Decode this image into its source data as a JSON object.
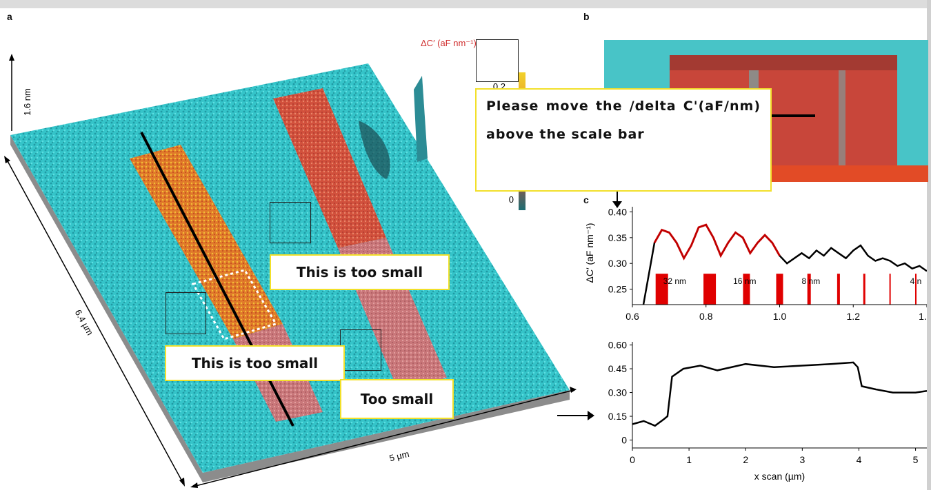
{
  "panels": {
    "a": "a",
    "b": "b",
    "c": "c"
  },
  "panel_a": {
    "colorbar_label": "ΔC′ (aF nm⁻¹)",
    "colorbar_ticks": [
      "0.2",
      "0"
    ],
    "height_label": "1.6 nm",
    "width_label": "6.4 µm",
    "depth_label": "5 µm",
    "colors": {
      "substrate": "#35c4c9",
      "stripe_orange": "#e0702a",
      "stripe_red": "#d14a3a",
      "stripe_pink": "#c9777a"
    }
  },
  "annotations": {
    "main_note": "Please move the /delta C'(aF/nm) above the scale bar",
    "small_note_1": "This is too small",
    "small_note_2": "This is too small",
    "small_note_3": "Too small"
  },
  "chart_data": [
    {
      "type": "line",
      "panel": "c-top",
      "xlabel": "",
      "ylabel": "ΔC′ (aF nm⁻¹)",
      "xlim": [
        0.6,
        1.4
      ],
      "ylim": [
        0.22,
        0.41
      ],
      "x_ticks": [
        "0.6",
        "0.8",
        "1.0",
        "1.2",
        "1."
      ],
      "y_ticks": [
        "0.40",
        "0.35",
        "0.30",
        "0.25"
      ],
      "bar_labels": [
        "32 nm",
        "16 nm",
        "8 nm",
        "4 n"
      ],
      "series": [
        {
          "x": [
            0.63,
            0.65,
            0.66,
            0.68,
            0.7,
            0.72,
            0.74,
            0.76,
            0.78,
            0.8,
            0.82,
            0.84,
            0.86,
            0.88,
            0.9,
            0.92,
            0.94,
            0.96,
            0.98,
            1.0,
            1.02,
            1.04,
            1.06,
            1.08,
            1.1,
            1.12,
            1.14,
            1.16,
            1.18,
            1.2,
            1.22,
            1.24,
            1.26,
            1.28,
            1.3,
            1.32,
            1.34,
            1.36,
            1.38,
            1.4
          ],
          "y": [
            0.22,
            0.3,
            0.34,
            0.365,
            0.36,
            0.34,
            0.31,
            0.335,
            0.37,
            0.375,
            0.35,
            0.315,
            0.34,
            0.36,
            0.35,
            0.32,
            0.34,
            0.355,
            0.34,
            0.315,
            0.3,
            0.31,
            0.32,
            0.31,
            0.325,
            0.315,
            0.33,
            0.32,
            0.31,
            0.325,
            0.335,
            0.315,
            0.305,
            0.31,
            0.305,
            0.295,
            0.3,
            0.29,
            0.295,
            0.285
          ]
        }
      ]
    },
    {
      "type": "line",
      "panel": "c-bottom",
      "xlabel": "x scan (µm)",
      "ylabel": "",
      "xlim": [
        0,
        5.2
      ],
      "ylim": [
        -0.05,
        0.62
      ],
      "x_ticks": [
        "0",
        "1",
        "2",
        "3",
        "4",
        "5"
      ],
      "y_ticks": [
        "0.60",
        "0.45",
        "0.30",
        "0.15",
        "0"
      ],
      "series": [
        {
          "x": [
            0,
            0.2,
            0.4,
            0.55,
            0.62,
            0.7,
            0.9,
            1.2,
            1.5,
            2.0,
            2.5,
            3.0,
            3.5,
            3.9,
            3.98,
            4.05,
            4.3,
            4.6,
            5.0,
            5.2
          ],
          "y": [
            0.1,
            0.12,
            0.09,
            0.13,
            0.15,
            0.4,
            0.45,
            0.47,
            0.44,
            0.48,
            0.46,
            0.47,
            0.48,
            0.49,
            0.46,
            0.34,
            0.32,
            0.3,
            0.3,
            0.31
          ]
        }
      ]
    }
  ]
}
